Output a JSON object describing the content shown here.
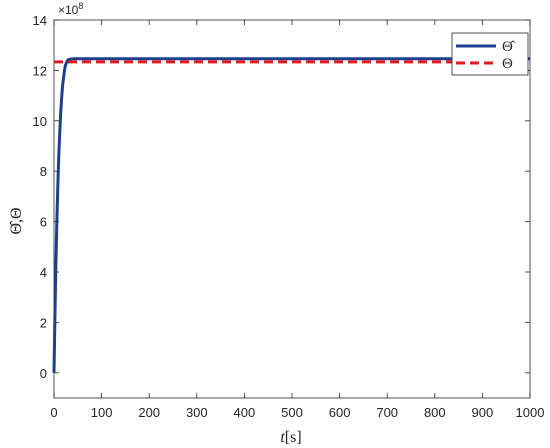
{
  "chart_data": {
    "type": "line",
    "title": "",
    "xlabel_italic": "t",
    "xlabel_unit": "[s]",
    "ylabel": "Θ̂,Θ",
    "y_exponent_base": "×10",
    "y_exponent_power": "8",
    "xlim": [
      0,
      1000
    ],
    "ylim": [
      -1,
      14
    ],
    "xticks": [
      0,
      100,
      200,
      300,
      400,
      500,
      600,
      700,
      800,
      900,
      1000
    ],
    "yticks": [
      0,
      2,
      4,
      6,
      8,
      10,
      12,
      14
    ],
    "grid": false,
    "legend_position": "top-right",
    "series": [
      {
        "name": "Θ̂",
        "color": "#1f3e8c",
        "style": "solid",
        "x": [
          0,
          2,
          4,
          6,
          8,
          10,
          12,
          14,
          16,
          18,
          20,
          22,
          24,
          26,
          28,
          30,
          35,
          40,
          60,
          100,
          1000
        ],
        "y": [
          0,
          2.3,
          4.3,
          6.0,
          7.4,
          8.6,
          9.5,
          10.3,
          10.9,
          11.4,
          11.7,
          12.0,
          12.2,
          12.3,
          12.38,
          12.42,
          12.45,
          12.46,
          12.46,
          12.46,
          12.46
        ]
      },
      {
        "name": "Θ",
        "color": "#e31a1c",
        "style": "dashed",
        "x": [
          0,
          1000
        ],
        "y": [
          12.34,
          12.34
        ]
      }
    ]
  }
}
